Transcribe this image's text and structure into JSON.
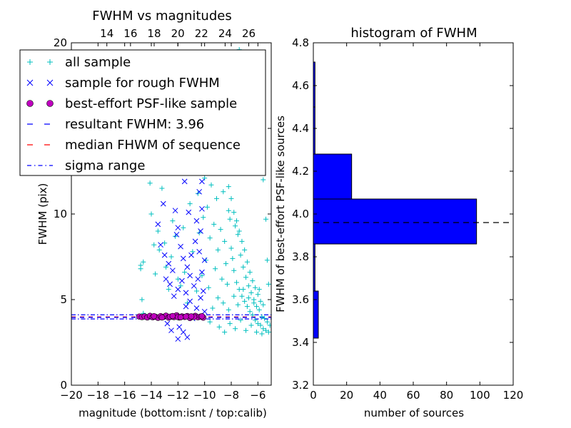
{
  "chart_data": [
    {
      "type": "scatter",
      "title": "FWHM vs magnitudes",
      "xlabel": "magnitude (bottom:isnt / top:calib)",
      "ylabel": "FWHM (pix)",
      "xlim": [
        -20,
        -5
      ],
      "ylim": [
        0,
        20
      ],
      "x_ticks": [
        "−20",
        "−18",
        "−16",
        "−14",
        "−12",
        "−10",
        "−8",
        "−6"
      ],
      "y_ticks": [
        "0",
        "5",
        "10",
        "15",
        "20"
      ],
      "top_xlim": [
        11,
        27.9
      ],
      "top_ticks": [
        "14",
        "16",
        "18",
        "20",
        "22",
        "24",
        "26"
      ],
      "series": [
        {
          "name": "all sample",
          "marker": "+",
          "color": "#00BFBF",
          "points": [
            [
              -14.8,
              7.0
            ],
            [
              -14.8,
              6.8
            ],
            [
              -14.7,
              5.0
            ],
            [
              -14.6,
              4.2
            ],
            [
              -14.6,
              7.2
            ],
            [
              -14.2,
              12.8
            ],
            [
              -14.1,
              11.8
            ],
            [
              -14.0,
              10.0
            ],
            [
              -13.8,
              8.2
            ],
            [
              -13.7,
              6.5
            ],
            [
              -13.5,
              9.0
            ],
            [
              -13.4,
              7.9
            ],
            [
              -13.2,
              11.5
            ],
            [
              -13.0,
              8.3
            ],
            [
              -12.9,
              6.9
            ],
            [
              -12.7,
              5.6
            ],
            [
              -12.5,
              7.5
            ],
            [
              -12.4,
              9.6
            ],
            [
              -12.2,
              8.7
            ],
            [
              -12.0,
              6.2
            ],
            [
              -11.8,
              5.8
            ],
            [
              -11.6,
              9.2
            ],
            [
              -11.5,
              6.6
            ],
            [
              -11.3,
              4.8
            ],
            [
              -11.1,
              10.6
            ],
            [
              -11.0,
              12.4
            ],
            [
              -10.9,
              7.8
            ],
            [
              -10.8,
              14.6
            ],
            [
              -10.7,
              16.2
            ],
            [
              -10.6,
              5.5
            ],
            [
              -10.5,
              11.2
            ],
            [
              -10.4,
              8.9
            ],
            [
              -10.3,
              13.1
            ],
            [
              -10.2,
              6.4
            ],
            [
              -10.1,
              9.8
            ],
            [
              -10.0,
              12.1
            ],
            [
              -9.9,
              7.3
            ],
            [
              -9.8,
              10.4
            ],
            [
              -9.7,
              5.7
            ],
            [
              -9.6,
              8.6
            ],
            [
              -9.5,
              11.7
            ],
            [
              -9.4,
              14.1
            ],
            [
              -9.3,
              9.4
            ],
            [
              -9.2,
              6.8
            ],
            [
              -9.1,
              10.9
            ],
            [
              -9.0,
              7.9
            ],
            [
              -8.9,
              13.5
            ],
            [
              -8.8,
              9.1
            ],
            [
              -8.7,
              6.2
            ],
            [
              -8.6,
              11.3
            ],
            [
              -8.5,
              8.4
            ],
            [
              -8.4,
              7.1
            ],
            [
              -8.3,
              5.9
            ],
            [
              -8.2,
              10.2
            ],
            [
              -8.1,
              9.7
            ],
            [
              -8.0,
              8.0
            ],
            [
              -7.9,
              7.4
            ],
            [
              -7.8,
              6.7
            ],
            [
              -7.7,
              9.3
            ],
            [
              -7.6,
              6.0
            ],
            [
              -7.5,
              8.8
            ],
            [
              -7.4,
              5.6
            ],
            [
              -7.3,
              7.6
            ],
            [
              -7.2,
              5.2
            ],
            [
              -7.1,
              6.9
            ],
            [
              -7.0,
              4.9
            ],
            [
              -6.9,
              6.3
            ],
            [
              -6.8,
              4.6
            ],
            [
              -6.7,
              5.8
            ],
            [
              -6.6,
              4.3
            ],
            [
              -6.5,
              5.4
            ],
            [
              -6.4,
              4.1
            ],
            [
              -6.3,
              5.0
            ],
            [
              -6.2,
              3.8
            ],
            [
              -6.1,
              4.6
            ],
            [
              -6.0,
              3.6
            ],
            [
              -5.9,
              4.4
            ],
            [
              -5.8,
              3.5
            ],
            [
              -5.7,
              4.0
            ],
            [
              -5.6,
              3.3
            ],
            [
              -5.5,
              3.9
            ],
            [
              -5.4,
              3.2
            ],
            [
              -5.3,
              3.7
            ],
            [
              -5.2,
              3.1
            ],
            [
              -5.1,
              3.5
            ],
            [
              -8.4,
              12.4
            ],
            [
              -8.2,
              11.6
            ],
            [
              -8.0,
              10.9
            ],
            [
              -7.8,
              10.1
            ],
            [
              -7.6,
              9.6
            ],
            [
              -7.4,
              9.0
            ],
            [
              -7.2,
              8.4
            ],
            [
              -7.0,
              7.9
            ],
            [
              -6.8,
              7.2
            ],
            [
              -6.6,
              6.6
            ],
            [
              -6.4,
              6.1
            ],
            [
              -6.2,
              5.7
            ],
            [
              -6.0,
              5.3
            ],
            [
              -5.8,
              4.9
            ],
            [
              -5.6,
              4.7
            ],
            [
              -9.3,
              15.5
            ],
            [
              -8.8,
              16.8
            ],
            [
              -8.3,
              18.4
            ],
            [
              -7.9,
              19.2
            ],
            [
              -7.4,
              19.6
            ],
            [
              -9.7,
              17.1
            ],
            [
              -9.1,
              18.9
            ],
            [
              -7.1,
              18.1
            ],
            [
              -6.6,
              16.9
            ],
            [
              -6.2,
              15.2
            ],
            [
              -5.9,
              13.6
            ],
            [
              -5.6,
              12.0
            ],
            [
              -5.4,
              9.7
            ],
            [
              -5.3,
              7.3
            ],
            [
              -5.2,
              5.9
            ],
            [
              -8.9,
              3.4
            ],
            [
              -8.5,
              3.1
            ],
            [
              -8.1,
              3.6
            ],
            [
              -7.7,
              3.3
            ],
            [
              -7.3,
              3.8
            ],
            [
              -6.9,
              3.2
            ],
            [
              -6.5,
              3.5
            ],
            [
              -6.1,
              3.1
            ],
            [
              -5.7,
              3.0
            ],
            [
              -9.6,
              3.7
            ],
            [
              -9.4,
              4.5
            ],
            [
              -9.0,
              5.1
            ],
            [
              -8.6,
              4.8
            ],
            [
              -8.2,
              4.4
            ],
            [
              -7.8,
              5.2
            ],
            [
              -7.5,
              4.7
            ],
            [
              -7.1,
              5.6
            ],
            [
              -6.7,
              5.1
            ],
            [
              -6.3,
              4.8
            ],
            [
              -5.9,
              5.6
            ],
            [
              -14.9,
              15.8
            ],
            [
              -14.3,
              17.4
            ],
            [
              -13.6,
              13.6
            ],
            [
              -11.9,
              16.4
            ],
            [
              -11.2,
              18.2
            ]
          ]
        },
        {
          "name": "sample for rough FWHM",
          "marker": "x",
          "color": "#0000FF",
          "points": [
            [
              -13.1,
              10.6
            ],
            [
              -12.0,
              9.2
            ],
            [
              -11.2,
              10.1
            ],
            [
              -10.2,
              10.3
            ],
            [
              -10.4,
              11.3
            ],
            [
              -11.5,
              11.9
            ],
            [
              -10.8,
              12.6
            ],
            [
              -10.1,
              13.4
            ],
            [
              -10.5,
              14.4
            ],
            [
              -10.9,
              15.2
            ],
            [
              -13.3,
              8.2
            ],
            [
              -13.0,
              7.6
            ],
            [
              -12.7,
              7.1
            ],
            [
              -12.4,
              6.7
            ],
            [
              -12.1,
              8.8
            ],
            [
              -11.8,
              8.1
            ],
            [
              -11.6,
              7.4
            ],
            [
              -11.3,
              6.9
            ],
            [
              -11.0,
              7.6
            ],
            [
              -10.7,
              8.4
            ],
            [
              -10.4,
              7.8
            ],
            [
              -10.2,
              6.6
            ],
            [
              -10.0,
              7.3
            ],
            [
              -12.9,
              6.2
            ],
            [
              -12.6,
              5.9
            ],
            [
              -12.3,
              5.2
            ],
            [
              -12.0,
              5.6
            ],
            [
              -11.7,
              6.1
            ],
            [
              -11.4,
              5.4
            ],
            [
              -11.1,
              6.4
            ],
            [
              -10.8,
              5.8
            ],
            [
              -10.5,
              6.2
            ],
            [
              -10.3,
              5.1
            ],
            [
              -10.1,
              5.5
            ],
            [
              -12.8,
              3.6
            ],
            [
              -12.5,
              3.2
            ],
            [
              -11.9,
              3.4
            ],
            [
              -11.6,
              3.1
            ],
            [
              -11.3,
              2.8
            ],
            [
              -12.0,
              2.7
            ],
            [
              -13.5,
              9.4
            ],
            [
              -12.2,
              10.2
            ],
            [
              -10.6,
              9.6
            ],
            [
              -10.3,
              9.0
            ],
            [
              -10.2,
              11.9
            ],
            [
              -11.4,
              4.6
            ],
            [
              -11.1,
              4.9
            ],
            [
              -10.6,
              4.5
            ],
            [
              -10.9,
              3.9
            ],
            [
              -10.0,
              4.3
            ]
          ]
        },
        {
          "name": "best-effort PSF-like sample",
          "marker": "o",
          "color": "#BF00BF",
          "points": [
            [
              -14.9,
              4.01
            ],
            [
              -14.7,
              3.98
            ],
            [
              -14.5,
              4.02
            ],
            [
              -14.3,
              3.96
            ],
            [
              -14.1,
              4.05
            ],
            [
              -13.9,
              3.97
            ],
            [
              -13.7,
              4.0
            ],
            [
              -13.5,
              3.94
            ],
            [
              -13.3,
              4.03
            ],
            [
              -13.1,
              3.99
            ],
            [
              -12.9,
              4.06
            ],
            [
              -12.7,
              3.95
            ],
            [
              -12.5,
              4.01
            ],
            [
              -12.3,
              3.98
            ],
            [
              -12.1,
              4.08
            ],
            [
              -11.9,
              3.96
            ],
            [
              -11.7,
              4.02
            ],
            [
              -11.5,
              3.99
            ],
            [
              -11.3,
              4.04
            ],
            [
              -11.1,
              3.93
            ],
            [
              -10.9,
              4.0
            ],
            [
              -10.7,
              4.05
            ],
            [
              -10.5,
              3.97
            ],
            [
              -10.3,
              4.01
            ],
            [
              -10.1,
              3.95
            ],
            [
              -13.8,
              4.03
            ],
            [
              -13.2,
              3.96
            ],
            [
              -12.6,
              4.0
            ],
            [
              -12.0,
              3.98
            ],
            [
              -11.4,
              4.01
            ],
            [
              -10.8,
              3.99
            ],
            [
              -10.2,
              4.03
            ],
            [
              -12.4,
              4.04
            ],
            [
              -11.8,
              3.97
            ],
            [
              -11.0,
              4.02
            ]
          ]
        },
        {
          "name": "resultant FWHM: 3.96",
          "line": "dashed",
          "color": "#0000FF",
          "y": 3.96
        },
        {
          "name": "median FHWM of sequence",
          "line": "dashed",
          "color": "#FF0000",
          "y": 3.99
        },
        {
          "name": "sigma range",
          "line": "dashdot",
          "color": "#0000FF",
          "y": [
            3.87,
            4.11
          ]
        }
      ]
    },
    {
      "type": "bar",
      "title": "histogram of FWHM",
      "xlabel": "number of sources",
      "ylabel": "FWHM of best-effort PSF-like sources",
      "xlim": [
        0,
        120
      ],
      "ylim": [
        3.2,
        4.8
      ],
      "x_ticks": [
        "0",
        "20",
        "40",
        "60",
        "80",
        "100",
        "120"
      ],
      "y_ticks": [
        "3.2",
        "3.4",
        "3.6",
        "3.8",
        "4.0",
        "4.2",
        "4.4",
        "4.6",
        "4.8"
      ],
      "bins": [
        {
          "from": 3.42,
          "to": 3.64,
          "count": 3
        },
        {
          "from": 3.64,
          "to": 3.86,
          "count": 1
        },
        {
          "from": 3.86,
          "to": 4.07,
          "count": 98
        },
        {
          "from": 4.07,
          "to": 4.28,
          "count": 23
        },
        {
          "from": 4.28,
          "to": 4.5,
          "count": 1
        },
        {
          "from": 4.5,
          "to": 4.71,
          "count": 1
        }
      ],
      "bar_color": "#0000FF",
      "reference_line": 3.96
    }
  ]
}
